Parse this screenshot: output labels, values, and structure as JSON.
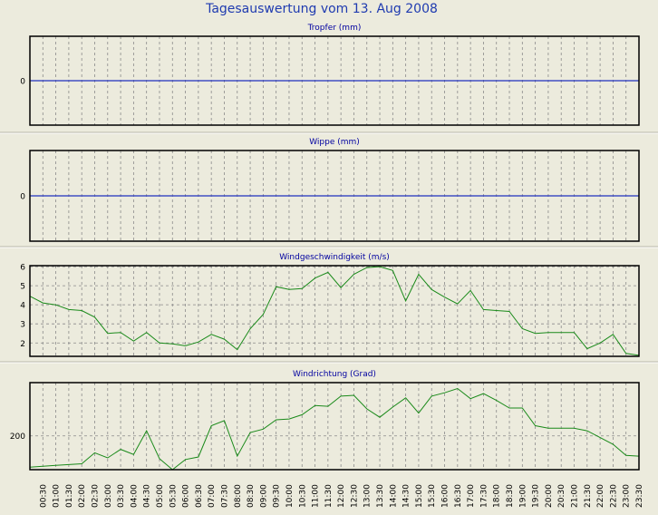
{
  "page_title": "Tagesauswertung vom 13. Aug 2008",
  "colors": {
    "background": "#ecebdd",
    "title": "#1f3bb0",
    "panel_title": "#0000a0",
    "zero_line": "#2030c0",
    "series": "#1a8a1a",
    "grid": "#8a8a8a",
    "frame": "#000000"
  },
  "time_ticks": [
    "00:30",
    "01:00",
    "01:30",
    "02:00",
    "02:30",
    "03:00",
    "03:30",
    "04:00",
    "04:30",
    "05:00",
    "05:30",
    "06:00",
    "06:30",
    "07:00",
    "07:30",
    "08:00",
    "08:30",
    "09:00",
    "09:30",
    "10:00",
    "10:30",
    "11:00",
    "11:30",
    "12:00",
    "12:30",
    "13:00",
    "13:30",
    "14:00",
    "14:30",
    "15:00",
    "15:30",
    "16:00",
    "16:30",
    "17:00",
    "17:30",
    "18:00",
    "18:30",
    "19:00",
    "19:30",
    "20:00",
    "20:30",
    "21:00",
    "21:30",
    "22:00",
    "22:30",
    "23:00",
    "23:30"
  ],
  "chart_data": [
    {
      "type": "line",
      "title": "Tropfer (mm)",
      "x": [
        "00:00",
        "23:30"
      ],
      "y_ticks": [
        "0"
      ],
      "ylim": [
        -1,
        1
      ],
      "series": [
        {
          "values": [
            0,
            0
          ]
        }
      ],
      "grid": true
    },
    {
      "type": "line",
      "title": "Wippe (mm)",
      "x": [
        "00:00",
        "23:30"
      ],
      "y_ticks": [
        "0"
      ],
      "ylim": [
        -1,
        1
      ],
      "series": [
        {
          "values": [
            0,
            0
          ]
        }
      ],
      "grid": true
    },
    {
      "type": "line",
      "title": "Windgeschwindigkeit (m/s)",
      "x": [
        "00:00",
        "00:30",
        "01:00",
        "01:30",
        "02:00",
        "02:30",
        "03:00",
        "03:30",
        "04:00",
        "04:30",
        "05:00",
        "05:30",
        "06:00",
        "06:30",
        "07:00",
        "07:30",
        "08:00",
        "08:30",
        "09:00",
        "09:30",
        "10:00",
        "10:30",
        "11:00",
        "11:30",
        "12:00",
        "12:30",
        "13:00",
        "13:30",
        "14:00",
        "14:30",
        "15:00",
        "15:30",
        "16:00",
        "16:30",
        "17:00",
        "17:30",
        "18:00",
        "18:30",
        "19:00",
        "19:30",
        "20:00",
        "20:30",
        "21:00",
        "21:30",
        "22:00",
        "22:30",
        "23:00",
        "23:30"
      ],
      "y_ticks": [
        "2",
        "3",
        "4",
        "5",
        "6"
      ],
      "ylim": [
        1.3,
        6.05
      ],
      "series": [
        {
          "values": [
            4.45,
            4.1,
            4.0,
            3.75,
            3.7,
            3.35,
            2.5,
            2.55,
            2.1,
            2.55,
            2.0,
            1.95,
            1.85,
            2.05,
            2.45,
            2.2,
            1.65,
            2.75,
            3.5,
            4.95,
            4.8,
            4.85,
            5.4,
            5.7,
            4.9,
            5.6,
            5.95,
            6.0,
            5.8,
            4.2,
            5.6,
            4.8,
            4.4,
            4.05,
            4.75,
            3.75,
            3.7,
            3.65,
            2.75,
            2.5,
            2.55,
            2.55,
            2.55,
            1.7,
            2.0,
            2.45,
            1.45,
            1.35
          ]
        }
      ],
      "grid": true
    },
    {
      "type": "line",
      "title": "Windrichtung (Grad)",
      "x": [
        "00:00",
        "00:30",
        "01:00",
        "01:30",
        "02:00",
        "02:30",
        "03:00",
        "03:30",
        "04:00",
        "04:30",
        "05:00",
        "05:30",
        "06:00",
        "06:30",
        "07:00",
        "07:30",
        "08:00",
        "08:30",
        "09:00",
        "09:30",
        "10:00",
        "10:30",
        "11:00",
        "11:30",
        "12:00",
        "12:30",
        "13:00",
        "13:30",
        "14:00",
        "14:30",
        "15:00",
        "15:30",
        "16:00",
        "16:30",
        "17:00",
        "17:30",
        "18:00",
        "18:30",
        "19:00",
        "19:30",
        "20:00",
        "20:30",
        "21:00",
        "21:30",
        "22:00",
        "22:30",
        "23:00",
        "23:30"
      ],
      "y_ticks": [
        "200"
      ],
      "ylim": [
        160,
        263
      ],
      "series": [
        {
          "values": [
            163,
            164,
            165,
            166,
            167,
            180,
            174,
            184,
            178,
            206,
            173,
            160,
            172,
            175,
            212,
            218,
            176,
            204,
            208,
            219,
            220,
            225,
            236,
            235,
            247,
            248,
            232,
            222,
            234,
            245,
            227,
            247,
            251,
            256,
            244,
            250,
            242,
            233,
            233,
            212,
            209,
            209,
            209,
            206,
            198,
            190,
            177,
            176
          ]
        }
      ],
      "grid": true
    }
  ]
}
